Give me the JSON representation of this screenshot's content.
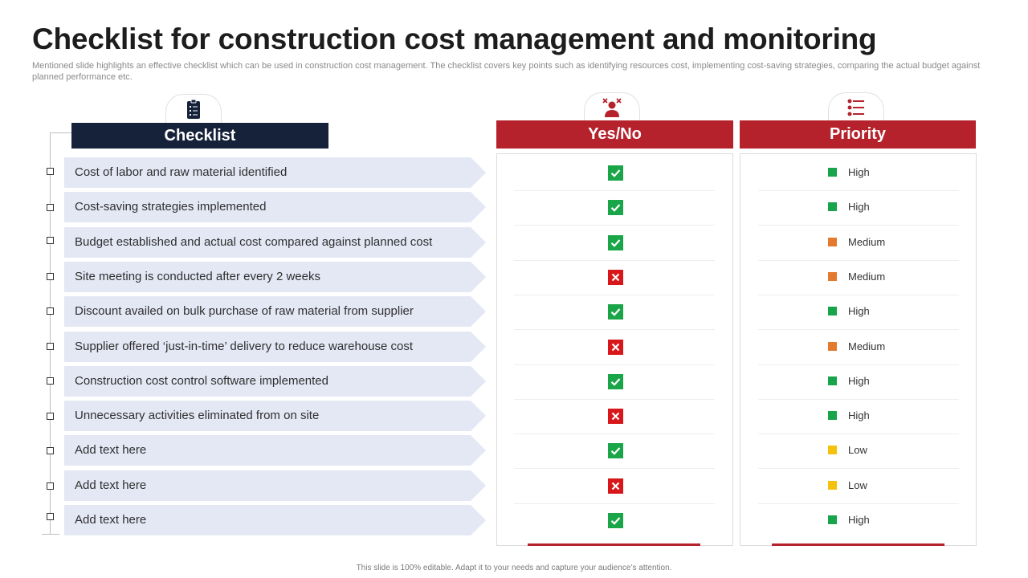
{
  "title": "Checklist for construction cost management and monitoring",
  "subtitle": "Mentioned slide highlights an effective checklist which can be used in construction cost management. The checklist covers key points such as identifying resources cost, implementing cost-saving strategies, comparing the actual budget against planned performance etc.",
  "headers": {
    "checklist": "Checklist",
    "yes_no": "Yes/No",
    "priority": "Priority"
  },
  "icons": {
    "checklist": "clipboard-icon",
    "yes_no": "person-cross-icon",
    "priority": "list-icon"
  },
  "colors": {
    "dark_navy": "#16213a",
    "brand_red": "#b5222c",
    "yes_green": "#1aa548",
    "no_red": "#d8171b",
    "high": "#17a44a",
    "medium": "#e37a2f",
    "low": "#f4c20d",
    "row_fill": "#e4e8f5"
  },
  "rows": [
    {
      "text": "Cost of labor and raw material identified",
      "done": true,
      "priority": "High"
    },
    {
      "text": "Cost-saving strategies implemented",
      "done": true,
      "priority": "High"
    },
    {
      "text": "Budget established and actual cost compared against planned cost",
      "done": true,
      "priority": "Medium"
    },
    {
      "text": "Site meeting is conducted after every 2 weeks",
      "done": false,
      "priority": "Medium"
    },
    {
      "text": "Discount availed on bulk purchase of raw material from supplier",
      "done": true,
      "priority": "High"
    },
    {
      "text": "Supplier offered ‘just-in-time’ delivery to reduce warehouse cost",
      "done": false,
      "priority": "Medium"
    },
    {
      "text": "Construction cost control software implemented",
      "done": true,
      "priority": "High"
    },
    {
      "text": "Unnecessary activities eliminated from on site",
      "done": false,
      "priority": "High"
    },
    {
      "text": "Add text here",
      "done": true,
      "priority": "Low"
    },
    {
      "text": "Add text here",
      "done": false,
      "priority": "Low"
    },
    {
      "text": "Add text here",
      "done": true,
      "priority": "High"
    }
  ],
  "footer": "This slide is 100% editable. Adapt it to your needs and capture your audience’s attention."
}
